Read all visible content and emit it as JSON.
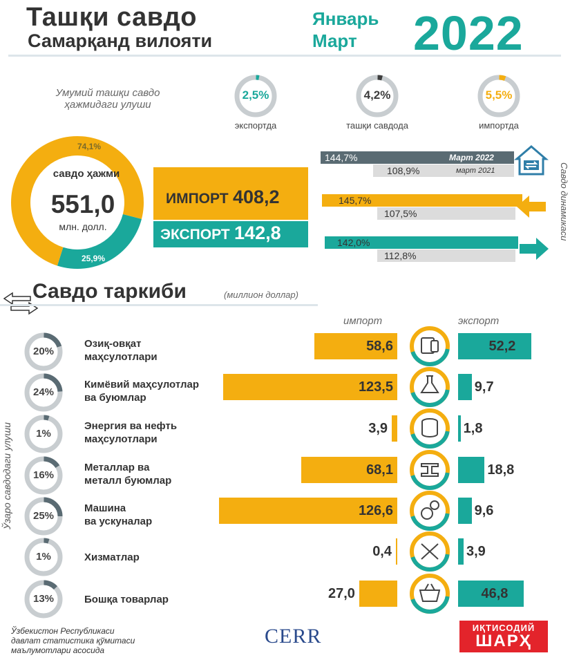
{
  "header": {
    "title": "Ташқи савдо",
    "subtitle": "Самарқанд вилояти",
    "period_line1": "Январь",
    "period_line2": "Март",
    "year": "2022"
  },
  "share": {
    "caption": "Умумий ташқи савдо ҳажмидаги улуши",
    "items": [
      {
        "value": "2,5%",
        "label": "экспортда",
        "fraction": 0.025,
        "color": "#1aa89b"
      },
      {
        "value": "4,2%",
        "label": "ташқи савдода",
        "fraction": 0.042,
        "color": "#3d3d3d"
      },
      {
        "value": "5,5%",
        "label": "импортда",
        "fraction": 0.055,
        "color": "#f4ae10"
      }
    ]
  },
  "volume": {
    "label": "савдо ҳажми",
    "total": "551,0",
    "unit": "млн. долл.",
    "import_share": "74,1%",
    "export_share": "25,9%",
    "import_fraction": 0.741,
    "export_fraction": 0.259,
    "import_label": "ИМПОРТ",
    "import_value": "408,2",
    "export_label": "ЭКСПОРТ",
    "export_value": "142,8"
  },
  "dynamics": {
    "title": "Савдо динамикаси",
    "rows": [
      {
        "current": "144,7%",
        "previous": "108,9%",
        "current_caption": "Март 2022",
        "previous_caption": "март 2021"
      },
      {
        "current": "145,7%",
        "previous": "107,5%"
      },
      {
        "current": "142,0%",
        "previous": "112,8%"
      }
    ]
  },
  "structure": {
    "title": "Савдо таркиби",
    "unit": "(миллион доллар)",
    "import_head": "импорт",
    "export_head": "экспорт",
    "side_label": "Ўзаро савдодаги улуши"
  },
  "chart_data": {
    "type": "bar",
    "title": "Савдо таркиби",
    "unit": "(миллион доллар)",
    "categories": [
      "Озиқ-овқат маҳсулотлари",
      "Кимёвий маҳсулотлар ва буюмлар",
      "Энергия ва нефть маҳсулотлари",
      "Металлар ва металл буюмлар",
      "Машина ва ускуналар",
      "Хизматлар",
      "Бошқа товарлар"
    ],
    "category_lines": [
      [
        "Озиқ-овқат",
        "маҳсулотлари"
      ],
      [
        "Кимёвий маҳсулотлар",
        "ва буюмлар"
      ],
      [
        "Энергия ва нефть",
        "маҳсулотлари"
      ],
      [
        "Металлар ва",
        "металл буюмлар"
      ],
      [
        "Машина",
        "ва ускуналар"
      ],
      [
        "Хизматлар"
      ],
      [
        "Бошқа товарлар"
      ]
    ],
    "share_labels": [
      "20%",
      "24%",
      "1%",
      "16%",
      "25%",
      "1%",
      "13%"
    ],
    "shares": [
      20,
      24,
      1,
      16,
      25,
      1,
      13
    ],
    "series": [
      {
        "name": "импорт",
        "color": "#f4ae10",
        "values": [
          58.6,
          123.5,
          3.9,
          68.1,
          126.6,
          0.4,
          27.0
        ],
        "labels": [
          "58,6",
          "123,5",
          "3,9",
          "68,1",
          "126,6",
          "0,4",
          "27,0"
        ]
      },
      {
        "name": "экспорт",
        "color": "#1aa89b",
        "values": [
          52.2,
          9.7,
          1.8,
          18.8,
          9.6,
          3.9,
          46.8
        ],
        "labels": [
          "52,2",
          "9,7",
          "1,8",
          "18,8",
          "9,6",
          "3,9",
          "46,8"
        ]
      }
    ],
    "icons": [
      "food-icon",
      "chemistry-flask-icon",
      "oil-barrel-icon",
      "steel-beam-icon",
      "gears-icon",
      "tools-icon",
      "basket-icon"
    ]
  },
  "footer": {
    "source_line1": "Ўзбекистон Республикаси",
    "source_line2": "давлат статистика қўмитаси",
    "source_line3": "маълумотлари асосида",
    "cerr": "CERR",
    "brand_line1": "ИҚТИСОДИЙ",
    "brand_line2": "ШАРҲ"
  },
  "colors": {
    "import": "#f4ae10",
    "export": "#1aa89b",
    "dark": "#5a6b73",
    "ring_gray": "#c8cdd0"
  }
}
